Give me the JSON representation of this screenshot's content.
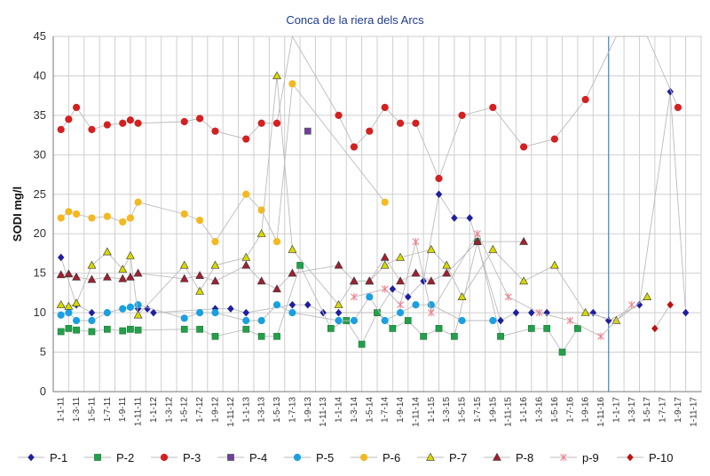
{
  "chart_data": {
    "type": "line",
    "title": "Conca de la riera dels Arcs",
    "ylabel": "SODI  mg/l",
    "xlabel": "",
    "ylim": [
      0,
      45
    ],
    "yticks": [
      0,
      5,
      10,
      15,
      20,
      25,
      30,
      35,
      40,
      45
    ],
    "grid": true,
    "legend_position": "bottom",
    "categories": [
      "1-1-11",
      "1-3-11",
      "1-5-11",
      "1-7-11",
      "1-9-11",
      "1-11-11",
      "1-1-12",
      "1-3-12",
      "1-5-12",
      "1-7-12",
      "1-9-12",
      "1-11-12",
      "1-1-13",
      "1-3-13",
      "1-5-13",
      "1-7-13",
      "1-9-13",
      "1-11-13",
      "1-1-14",
      "1-3-14",
      "1-5-14",
      "1-7-14",
      "1-9-14",
      "1-11-14",
      "1-1-15",
      "1-3-15",
      "1-5-15",
      "1-7-15",
      "1-9-15",
      "1-11-15",
      "1-1-16",
      "1-3-16",
      "1-5-16",
      "1-7-16",
      "1-9-16",
      "1-11-16",
      "1-1-17",
      "1-3-17",
      "1-5-17",
      "1-7-17",
      "1-9-17",
      "1-11-17"
    ],
    "vertical_marker": 35.5,
    "series": [
      {
        "name": "P-1",
        "color": "#1f1fa0",
        "marker": "diamond",
        "points": [
          [
            0,
            17
          ],
          [
            1,
            11
          ],
          [
            2,
            10
          ],
          [
            3,
            10
          ],
          [
            4,
            10.5
          ],
          [
            5,
            10.5
          ],
          [
            5.6,
            10.5
          ],
          [
            6,
            10
          ],
          [
            10,
            10.5
          ],
          [
            11,
            10.5
          ],
          [
            12,
            10
          ],
          [
            15,
            11
          ],
          [
            16,
            11
          ],
          [
            17,
            10
          ],
          [
            18,
            10
          ],
          [
            20.5,
            10
          ],
          [
            21.5,
            13
          ],
          [
            22.5,
            12
          ],
          [
            23.5,
            14
          ],
          [
            24.5,
            25
          ],
          [
            25.5,
            22
          ],
          [
            26.5,
            22
          ],
          [
            28.5,
            9
          ],
          [
            29.5,
            10
          ],
          [
            30.5,
            10
          ],
          [
            31.5,
            10
          ],
          [
            34.5,
            10
          ],
          [
            35.5,
            9
          ],
          [
            37.5,
            11
          ],
          [
            39.5,
            38
          ],
          [
            40.5,
            10
          ]
        ]
      },
      {
        "name": "P-2",
        "color": "#22a04a",
        "marker": "square",
        "points": [
          [
            0,
            7.6
          ],
          [
            0.5,
            8
          ],
          [
            1,
            7.8
          ],
          [
            2,
            7.6
          ],
          [
            3,
            7.9
          ],
          [
            4,
            7.7
          ],
          [
            4.5,
            7.9
          ],
          [
            5,
            7.8
          ],
          [
            8,
            7.9
          ],
          [
            9,
            7.9
          ],
          [
            10,
            7
          ],
          [
            12,
            7.9
          ],
          [
            13,
            7
          ],
          [
            14,
            7
          ],
          [
            15.5,
            16
          ],
          [
            17.5,
            8
          ],
          [
            18.5,
            9
          ],
          [
            19.5,
            6
          ],
          [
            20.5,
            10
          ],
          [
            21.5,
            8
          ],
          [
            22.5,
            9
          ],
          [
            23.5,
            7
          ],
          [
            24.5,
            8
          ],
          [
            25.5,
            7
          ],
          [
            27,
            19
          ],
          [
            28.5,
            7
          ],
          [
            30.5,
            8
          ],
          [
            31.5,
            8
          ],
          [
            32.5,
            5
          ],
          [
            33.5,
            8
          ]
        ]
      },
      {
        "name": "P-3",
        "color": "#d42020",
        "marker": "circle",
        "points": [
          [
            0,
            33.2
          ],
          [
            0.5,
            34.5
          ],
          [
            1,
            36
          ],
          [
            2,
            33.2
          ],
          [
            3,
            33.8
          ],
          [
            4,
            34
          ],
          [
            4.5,
            34.4
          ],
          [
            5,
            34
          ],
          [
            8,
            34.2
          ],
          [
            9,
            34.6
          ],
          [
            10,
            33
          ],
          [
            12,
            32
          ],
          [
            13,
            34
          ],
          [
            14,
            34
          ],
          [
            15,
            45
          ],
          [
            18,
            35
          ],
          [
            19,
            31
          ],
          [
            20,
            33
          ],
          [
            21,
            36
          ],
          [
            22,
            34
          ],
          [
            23,
            34
          ],
          [
            24.5,
            27
          ],
          [
            26,
            35
          ],
          [
            28,
            36
          ],
          [
            30,
            31
          ],
          [
            32,
            32
          ],
          [
            34,
            37
          ],
          [
            36,
            45
          ],
          [
            38,
            45
          ],
          [
            40,
            36
          ]
        ]
      },
      {
        "name": "P-4",
        "color": "#7a3aa0",
        "marker": "square",
        "points": [
          [
            16,
            33
          ]
        ]
      },
      {
        "name": "P-5",
        "color": "#1aa0e0",
        "marker": "circle",
        "points": [
          [
            0,
            9.7
          ],
          [
            0.5,
            10
          ],
          [
            1,
            9
          ],
          [
            2,
            9
          ],
          [
            3,
            10
          ],
          [
            4,
            10.5
          ],
          [
            4.5,
            10.7
          ],
          [
            5,
            11
          ],
          [
            8,
            9.3
          ],
          [
            9,
            10
          ],
          [
            10,
            10
          ],
          [
            12,
            9
          ],
          [
            13,
            9
          ],
          [
            14,
            11
          ],
          [
            15,
            10
          ],
          [
            18,
            9
          ],
          [
            19,
            9
          ],
          [
            20,
            12
          ],
          [
            21,
            9
          ],
          [
            22,
            10
          ],
          [
            23,
            11
          ],
          [
            24,
            11
          ],
          [
            26,
            9
          ],
          [
            28,
            9
          ]
        ]
      },
      {
        "name": "P-6",
        "color": "#f4b820",
        "marker": "circle",
        "points": [
          [
            0,
            22
          ],
          [
            0.5,
            22.8
          ],
          [
            1,
            22.5
          ],
          [
            2,
            22
          ],
          [
            3,
            22.2
          ],
          [
            4,
            21.5
          ],
          [
            4.5,
            22
          ],
          [
            5,
            24
          ],
          [
            8,
            22.5
          ],
          [
            9,
            21.7
          ],
          [
            10,
            19
          ],
          [
            12,
            25
          ],
          [
            13,
            23
          ],
          [
            14,
            19
          ],
          [
            15,
            39
          ],
          [
            21,
            24
          ]
        ]
      },
      {
        "name": "P-7",
        "color": "#d8d800",
        "marker": "triangle",
        "points": [
          [
            0,
            11
          ],
          [
            0.5,
            10.8
          ],
          [
            1,
            11.2
          ],
          [
            2,
            16
          ],
          [
            3,
            17.7
          ],
          [
            4,
            15.5
          ],
          [
            4.5,
            17.2
          ],
          [
            5,
            9.7
          ],
          [
            8,
            16
          ],
          [
            9,
            12.7
          ],
          [
            10,
            16
          ],
          [
            12,
            17
          ],
          [
            13,
            20
          ],
          [
            14,
            40
          ],
          [
            15,
            18
          ],
          [
            18,
            11
          ],
          [
            19,
            14
          ],
          [
            20,
            14
          ],
          [
            21,
            16
          ],
          [
            22,
            17
          ],
          [
            24,
            18
          ],
          [
            25,
            16
          ],
          [
            26,
            12
          ],
          [
            28,
            18
          ],
          [
            30,
            14
          ],
          [
            32,
            16
          ],
          [
            34,
            10
          ],
          [
            36,
            9
          ],
          [
            38,
            12
          ]
        ]
      },
      {
        "name": "P-8",
        "color": "#a02030",
        "marker": "triangle",
        "points": [
          [
            0,
            14.8
          ],
          [
            0.5,
            14.9
          ],
          [
            1,
            14.5
          ],
          [
            2,
            14.2
          ],
          [
            3,
            14.5
          ],
          [
            4,
            14.3
          ],
          [
            4.5,
            14.5
          ],
          [
            5,
            15
          ],
          [
            8,
            14.3
          ],
          [
            9,
            14.7
          ],
          [
            10,
            14
          ],
          [
            12,
            16
          ],
          [
            13,
            14
          ],
          [
            14,
            13
          ],
          [
            15,
            15
          ],
          [
            18,
            16
          ],
          [
            19,
            14
          ],
          [
            20,
            14
          ],
          [
            21,
            17
          ],
          [
            22,
            14
          ],
          [
            23,
            15
          ],
          [
            24,
            14
          ],
          [
            25,
            15
          ],
          [
            27,
            19
          ],
          [
            30,
            19
          ]
        ]
      },
      {
        "name": "p-9",
        "color": "#f08090",
        "marker": "star",
        "points": [
          [
            19,
            12
          ],
          [
            21,
            13
          ],
          [
            22,
            11
          ],
          [
            23,
            19
          ],
          [
            24,
            10
          ],
          [
            27,
            20
          ],
          [
            29,
            12
          ],
          [
            31,
            10
          ],
          [
            33,
            9
          ],
          [
            35,
            7
          ],
          [
            37,
            11
          ]
        ]
      },
      {
        "name": "P-10",
        "color": "#c01010",
        "marker": "diamond",
        "points": [
          [
            38.5,
            8
          ],
          [
            39.5,
            11
          ]
        ]
      }
    ],
    "legend": [
      "P-1",
      "P-2",
      "P-3",
      "P-4",
      "P-5",
      "P-6",
      "P-7",
      "P-8",
      "p-9",
      "P-10"
    ]
  }
}
